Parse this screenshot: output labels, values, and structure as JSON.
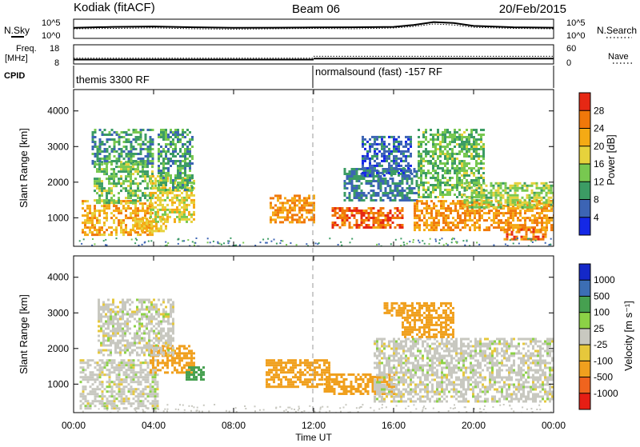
{
  "header": {
    "station": "Kodiak (fitACF)",
    "beam": "Beam 06",
    "date": "20/Feb/2015"
  },
  "noise_panel": {
    "left_label": "N.Sky",
    "right_label": "N.Search",
    "y_ticks": [
      "10^5",
      "10^0"
    ]
  },
  "freq_panel": {
    "left_label_top": "Freq.",
    "left_label_bottom": "[MHz]",
    "right_label": "Nave",
    "left_ticks": [
      "18",
      "8"
    ],
    "right_ticks": [
      "60",
      "0"
    ]
  },
  "cpid_panel": {
    "label": "CPID",
    "modes": [
      {
        "name": "themis 3300 RF",
        "start_hour": 0
      },
      {
        "name": "normalsound (fast) -157 RF",
        "start_hour": 12
      }
    ]
  },
  "chart_data": [
    {
      "type": "heatmap",
      "panel": "power",
      "ylabel": "Slant Range [km]",
      "y_ticks": [
        1000,
        2000,
        3000,
        4000
      ],
      "ylim": [
        200,
        4600
      ],
      "colorbar": {
        "label": "Power [dB]",
        "ticks": [
          4,
          8,
          12,
          16,
          20,
          24,
          28
        ],
        "colors": [
          "#1428e6",
          "#3c64b4",
          "#3c9c64",
          "#78c850",
          "#e6d23c",
          "#f5aa14",
          "#f0780a",
          "#e62814"
        ]
      },
      "regions": [
        {
          "x0": 0.4,
          "x1": 3.9,
          "y0": 520,
          "y1": 1500,
          "level": 22
        },
        {
          "x0": 1.0,
          "x1": 4.0,
          "y0": 1400,
          "y1": 2600,
          "level": 13
        },
        {
          "x0": 0.9,
          "x1": 4.0,
          "y0": 2500,
          "y1": 3500,
          "level": 10
        },
        {
          "x0": 3.8,
          "x1": 6.0,
          "y0": 900,
          "y1": 2200,
          "level": 18
        },
        {
          "x0": 4.2,
          "x1": 5.9,
          "y0": 1800,
          "y1": 3500,
          "level": 11
        },
        {
          "x0": 3.0,
          "x1": 4.6,
          "y0": 650,
          "y1": 1000,
          "level": 20
        },
        {
          "x0": 9.8,
          "x1": 12.0,
          "y0": 850,
          "y1": 1650,
          "level": 24
        },
        {
          "x0": 12.9,
          "x1": 16.5,
          "y0": 700,
          "y1": 1300,
          "level": 27
        },
        {
          "x0": 13.5,
          "x1": 17.2,
          "y0": 1500,
          "y1": 2400,
          "level": 8
        },
        {
          "x0": 14.4,
          "x1": 16.9,
          "y0": 2200,
          "y1": 3300,
          "level": 6
        },
        {
          "x0": 17.2,
          "x1": 20.5,
          "y0": 1600,
          "y1": 3500,
          "level": 13
        },
        {
          "x0": 17.0,
          "x1": 24.0,
          "y0": 650,
          "y1": 1500,
          "level": 24
        },
        {
          "x0": 19.5,
          "x1": 24.0,
          "y0": 1300,
          "y1": 2000,
          "level": 15
        },
        {
          "x0": 21.5,
          "x1": 23.6,
          "y0": 400,
          "y1": 700,
          "level": 26
        }
      ]
    },
    {
      "type": "heatmap",
      "panel": "velocity",
      "ylabel": "Slant Range [km]",
      "y_ticks": [
        1000,
        2000,
        3000,
        4000
      ],
      "ylim": [
        200,
        4600
      ],
      "xlabel": "Time UT",
      "x_ticks": [
        "00:00",
        "04:00",
        "08:00",
        "12:00",
        "16:00",
        "20:00",
        "00:00"
      ],
      "colorbar": {
        "label": "Velocity [m s⁻¹]",
        "ticks": [
          1000,
          500,
          100,
          25,
          -25,
          -100,
          -500,
          -1000
        ],
        "colors": [
          "#1428c8",
          "#3c6eb4",
          "#46a050",
          "#8cd246",
          "#c8c8c0",
          "#e6c83c",
          "#f0a01e",
          "#f0641e",
          "#e61e14"
        ]
      },
      "regions": [
        {
          "x0": 0.3,
          "x1": 4.2,
          "y0": 350,
          "y1": 1700,
          "level": 0
        },
        {
          "x0": 3.8,
          "x1": 6.0,
          "y0": 1300,
          "y1": 2100,
          "level": -150
        },
        {
          "x0": 5.6,
          "x1": 6.5,
          "y0": 1100,
          "y1": 1500,
          "level": 150
        },
        {
          "x0": 1.2,
          "x1": 5.0,
          "y0": 1800,
          "y1": 3400,
          "level": 0
        },
        {
          "x0": 9.6,
          "x1": 12.8,
          "y0": 900,
          "y1": 1700,
          "level": -300
        },
        {
          "x0": 12.5,
          "x1": 16.0,
          "y0": 700,
          "y1": 1300,
          "level": -150
        },
        {
          "x0": 15.0,
          "x1": 24.0,
          "y0": 500,
          "y1": 2300,
          "level": 0
        },
        {
          "x0": 16.4,
          "x1": 19.0,
          "y0": 2300,
          "y1": 3300,
          "level": -200
        },
        {
          "x0": 15.5,
          "x1": 16.5,
          "y0": 2900,
          "y1": 3300,
          "level": -400
        }
      ]
    }
  ],
  "noise_series": {
    "hours": [
      0,
      2,
      4,
      6,
      8,
      10,
      12,
      14,
      16,
      17,
      18,
      19,
      20,
      22,
      24
    ],
    "sky": [
      0.55,
      0.6,
      0.62,
      0.58,
      0.55,
      0.56,
      0.57,
      0.58,
      0.6,
      0.7,
      0.85,
      0.8,
      0.65,
      0.58,
      0.56
    ],
    "search": [
      0.5,
      0.52,
      0.55,
      0.5,
      0.48,
      0.5,
      0.52,
      0.5,
      0.54,
      0.62,
      0.75,
      0.7,
      0.58,
      0.52,
      0.5
    ]
  },
  "freq_series": {
    "segments": [
      {
        "x0": 0,
        "x1": 12,
        "mhz": 10.3
      },
      {
        "x0": 12,
        "x1": 24,
        "mhz": 10.8
      }
    ],
    "nave": [
      {
        "x0": 0,
        "x1": 12,
        "value": 18
      },
      {
        "x0": 12,
        "x1": 24,
        "value": 24
      }
    ]
  }
}
